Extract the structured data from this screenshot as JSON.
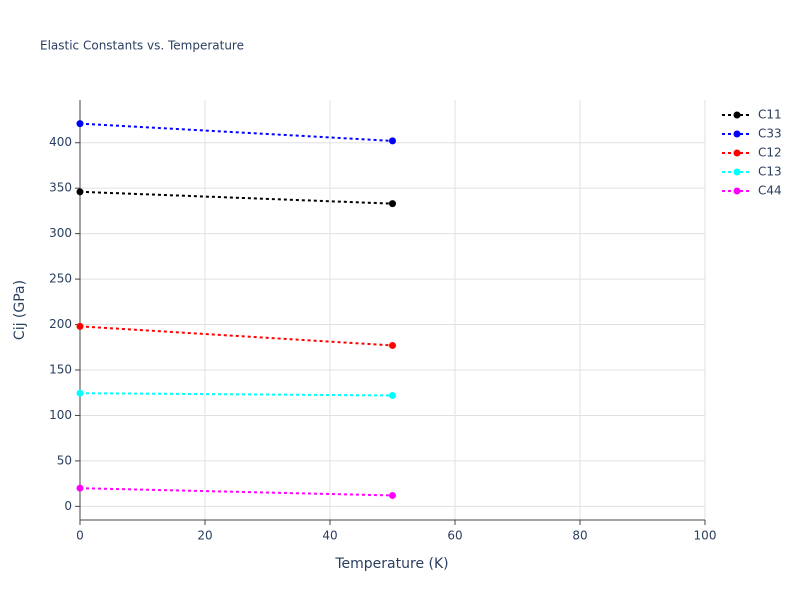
{
  "chart_data": {
    "type": "line",
    "title": "Elastic Constants vs. Temperature",
    "x_label": "Temperature (K)",
    "y_label": "Cij (GPa)",
    "x": [
      0,
      50
    ],
    "series": [
      {
        "name": "C11",
        "color": "#000000",
        "values": [
          346,
          333
        ]
      },
      {
        "name": "C33",
        "color": "#0000ff",
        "values": [
          421,
          402
        ]
      },
      {
        "name": "C12",
        "color": "#ff0000",
        "values": [
          198,
          177
        ]
      },
      {
        "name": "C13",
        "color": "#00ffff",
        "values": [
          124.5,
          122
        ]
      },
      {
        "name": "C44",
        "color": "#ff00ff",
        "values": [
          20,
          12
        ]
      }
    ],
    "xlim": [
      0,
      100
    ],
    "xticks": [
      0,
      20,
      40,
      60,
      80,
      100
    ],
    "ylim": [
      -15,
      447
    ],
    "yticks": [
      0,
      50,
      100,
      150,
      200,
      250,
      300,
      350,
      400
    ],
    "grid": true,
    "legend": "top-right",
    "line_style": "dotted"
  }
}
